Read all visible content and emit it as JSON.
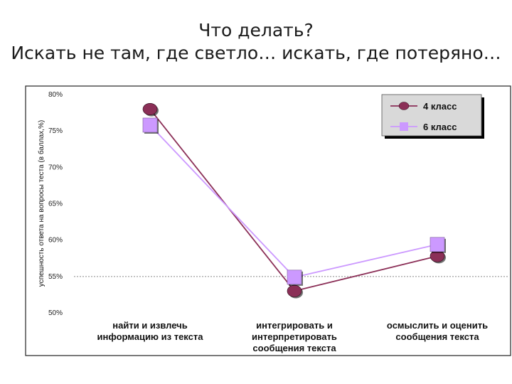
{
  "slide": {
    "title_line1": "Что делать?",
    "title_line2": "Искать не там, где светло… искать, где потеряно…"
  },
  "chart_data": {
    "type": "line",
    "ylabel": "успешность ответа на вопросы теста (в баллах,%)",
    "xlabel": "",
    "ylim": [
      50,
      80
    ],
    "y_ticks": [
      "50%",
      "55%",
      "60%",
      "65%",
      "70%",
      "75%",
      "80%"
    ],
    "categories": [
      [
        "найти и извлечь",
        "информацию из текста"
      ],
      [
        "интегрировать и",
        "интерпретировать",
        "сообщения текста"
      ],
      [
        "осмыслить и оценить",
        "сообщения текста"
      ]
    ],
    "series": [
      {
        "name": "4 класс",
        "values": [
          78,
          53,
          57.8
        ],
        "color": "#8b2f57",
        "marker": "circle"
      },
      {
        "name": "6 класс",
        "values": [
          75.8,
          54.9,
          59.4
        ],
        "color": "#cc99ff",
        "marker": "square"
      }
    ],
    "grid": false,
    "legend": "top-right",
    "colors": {
      "frame": "#222222",
      "legend_bg": "#d9d9d9",
      "dashed_line": "#888888"
    }
  }
}
